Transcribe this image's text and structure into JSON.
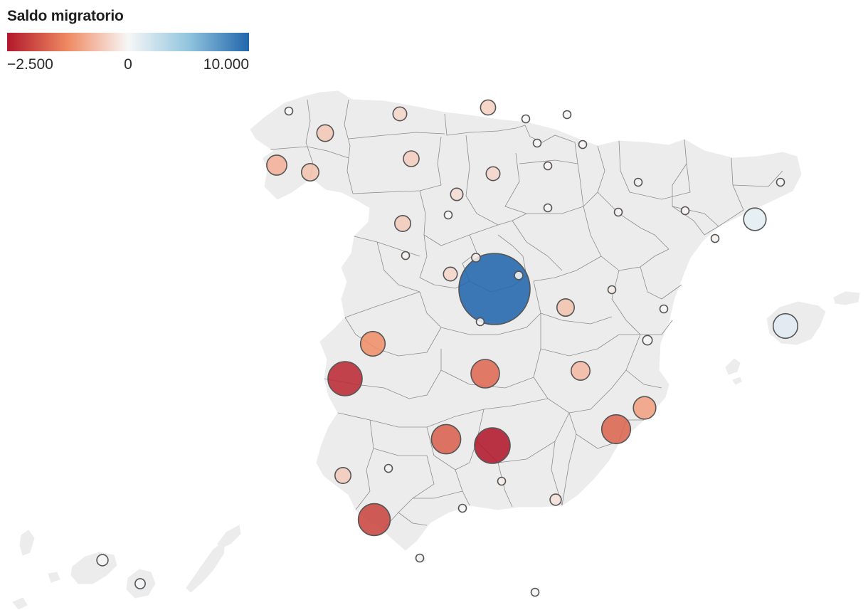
{
  "legend": {
    "title": "Saldo migratorio",
    "min_label": "−2.500",
    "mid_label": "0",
    "max_label": "10.000",
    "min_value": -2500,
    "mid_value": 0,
    "max_value": 10000,
    "color_min": "#b2182b",
    "color_low": "#ef8a62",
    "color_mid": "#f7f7f7",
    "color_high": "#92c5de",
    "color_max": "#2166ac"
  },
  "colors": {
    "land": "#ececec",
    "border": "#8c8c8c",
    "bubble_stroke": "#555555"
  },
  "provinces": [
    {
      "name": "Madrid",
      "value": 10000
    },
    {
      "name": "Illes Balears",
      "value": 1200
    },
    {
      "name": "Barcelona",
      "value": 1000
    },
    {
      "name": "Santa Cruz de Tenerife",
      "value": 250
    },
    {
      "name": "Las Palmas",
      "value": 200
    },
    {
      "name": "Valencia",
      "value": 180
    },
    {
      "name": "Castellón",
      "value": 80
    },
    {
      "name": "Málaga",
      "value": 60
    },
    {
      "name": "A Coruña",
      "value": 30
    },
    {
      "name": "Guadalajara",
      "value": 140
    },
    {
      "name": "Girona",
      "value": 30
    },
    {
      "name": "Bizkaia",
      "value": 20
    },
    {
      "name": "Gipuzkoa",
      "value": -10
    },
    {
      "name": "Álava",
      "value": -15
    },
    {
      "name": "Navarra",
      "value": -40
    },
    {
      "name": "La Rioja",
      "value": -30
    },
    {
      "name": "Huesca",
      "value": -70
    },
    {
      "name": "Lleida",
      "value": -40
    },
    {
      "name": "Tarragona",
      "value": -90
    },
    {
      "name": "Zaragoza",
      "value": -30
    },
    {
      "name": "Teruel",
      "value": -120
    },
    {
      "name": "Soria",
      "value": -25
    },
    {
      "name": "Segovia",
      "value": -150
    },
    {
      "name": "Toledo",
      "value": -10
    },
    {
      "name": "Ávila",
      "value": -380
    },
    {
      "name": "Salamanca",
      "value": -80
    },
    {
      "name": "Zamora",
      "value": -500
    },
    {
      "name": "León",
      "value": -480
    },
    {
      "name": "Valladolid",
      "value": -2
    },
    {
      "name": "Palencia",
      "value": -300
    },
    {
      "name": "Burgos",
      "value": -380
    },
    {
      "name": "Cantabria",
      "value": -450
    },
    {
      "name": "Asturias",
      "value": -380
    },
    {
      "name": "Lugo",
      "value": -550
    },
    {
      "name": "Pontevedra",
      "value": -600
    },
    {
      "name": "Ourense",
      "value": -800
    },
    {
      "name": "Cuenca",
      "value": -600
    },
    {
      "name": "Cáceres",
      "value": -1200
    },
    {
      "name": "Badajoz",
      "value": -2300
    },
    {
      "name": "Ciudad Real",
      "value": -1600
    },
    {
      "name": "Albacete",
      "value": -700
    },
    {
      "name": "Alicante",
      "value": -1000
    },
    {
      "name": "Murcia",
      "value": -1650
    },
    {
      "name": "Córdoba",
      "value": -1700
    },
    {
      "name": "Jaén",
      "value": -2500
    },
    {
      "name": "Sevilla",
      "value": -60
    },
    {
      "name": "Huelva",
      "value": -500
    },
    {
      "name": "Granada",
      "value": -90
    },
    {
      "name": "Almería",
      "value": -250
    },
    {
      "name": "Cádiz",
      "value": -2000
    },
    {
      "name": "Ceuta",
      "value": -50
    },
    {
      "name": "Melilla",
      "value": -5
    }
  ]
}
